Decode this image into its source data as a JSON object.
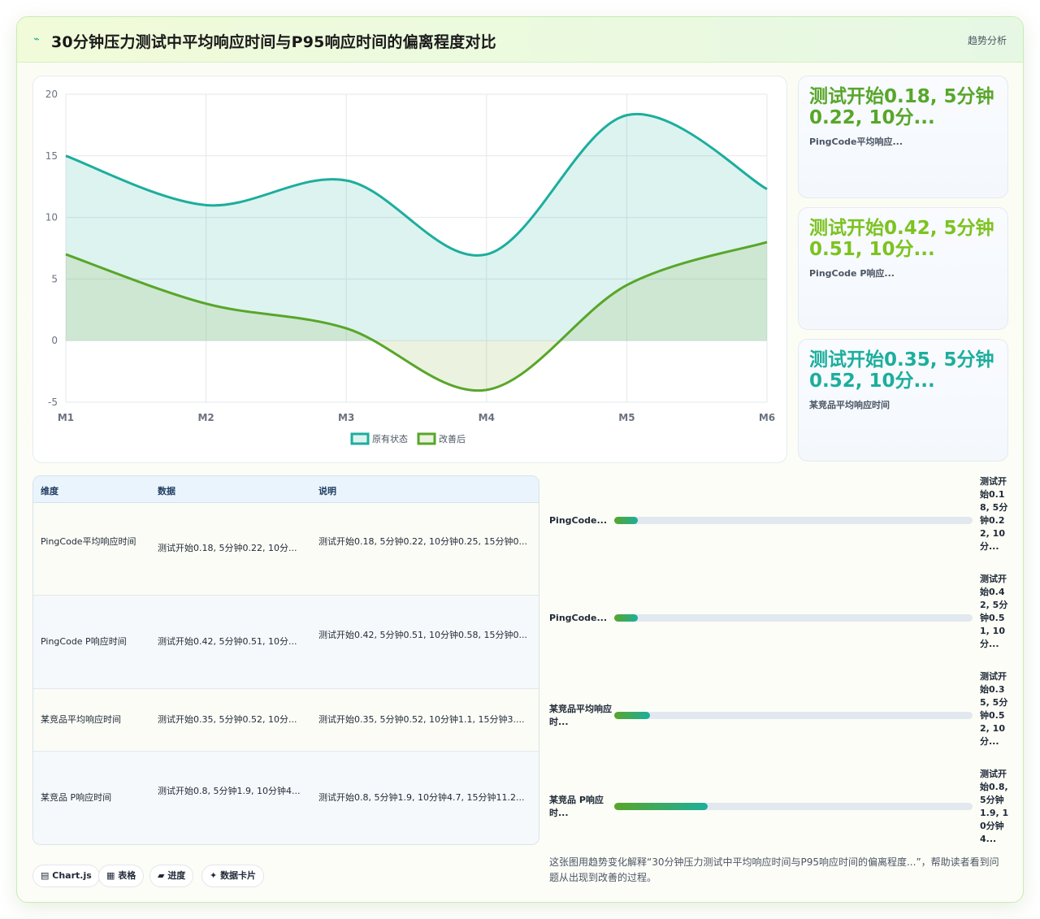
{
  "header": {
    "icon": "trend-line-icon",
    "title": "30分钟压力测试中平均响应时间与P95响应时间的偏离程度对比",
    "badge": "趋势分析"
  },
  "colors": {
    "teal": "#1cae9d",
    "green": "#58a62a",
    "lime": "#7cc320"
  },
  "chart_data": {
    "type": "area",
    "categories": [
      "M1",
      "M2",
      "M3",
      "M4",
      "M5",
      "M6"
    ],
    "ylim": [
      -5,
      20
    ],
    "yticks": [
      20,
      15,
      10,
      5,
      0,
      -5
    ],
    "grid": true,
    "legend_position": "bottom",
    "series": [
      {
        "name": "原有状态",
        "values": [
          15,
          11,
          13,
          7,
          18.3,
          12.3
        ],
        "color": "#1cae9d"
      },
      {
        "name": "改善后",
        "values": [
          7,
          3,
          1,
          -4,
          4.5,
          8
        ],
        "color": "#58a62a"
      }
    ]
  },
  "kpis": [
    {
      "value": "测试开始0.18, 5分钟0.22, 10分...",
      "label": "PingCode平均响应...",
      "color": "#58a62a"
    },
    {
      "value": "测试开始0.42, 5分钟0.51, 10分...",
      "label": "PingCode P响应...",
      "color": "#7cc320"
    },
    {
      "value": "测试开始0.35, 5分钟0.52, 10分...",
      "label": "某竞品平均响应时间",
      "color": "#1cae9d"
    }
  ],
  "table": {
    "headers": [
      "维度",
      "数据",
      "说明"
    ],
    "rows": [
      [
        "PingCode平均响应时间",
        "测试开始0.18, 5分钟0.22, 10分...",
        "测试开始0.18, 5分钟0.22, 10分钟0.25, 15分钟0..."
      ],
      [
        "PingCode P响应时间",
        "测试开始0.42, 5分钟0.51, 10分...",
        "测试开始0.42, 5分钟0.51, 10分钟0.58, 15分钟0..."
      ],
      [
        "某竞品平均响应时间",
        "测试开始0.35, 5分钟0.52, 10分...",
        "测试开始0.35, 5分钟0.52, 10分钟1.1, 15分钟3...."
      ],
      [
        "某竞品 P响应时间",
        "测试开始0.8, 5分钟1.9, 10分钟4...",
        "测试开始0.8, 5分钟1.9, 10分钟4.7, 15分钟11.2..."
      ]
    ]
  },
  "progress": [
    {
      "name": "PingCode...",
      "value": "测试开始0.18, 5分钟0.22, 10分...",
      "fraction": 0.065
    },
    {
      "name": "PingCode...",
      "value": "测试开始0.42, 5分钟0.51, 10分...",
      "fraction": 0.065
    },
    {
      "name": "某竞品平均响应时...",
      "value": "测试开始0.35, 5分钟0.52, 10分...",
      "fraction": 0.1
    },
    {
      "name": "某竞品 P响应时...",
      "value": "测试开始0.8, 5分钟1.9, 10分钟4...",
      "fraction": 0.26
    }
  ],
  "chips": [
    {
      "icon": "chart-icon",
      "glyph": "▤",
      "label": "Chart.js"
    },
    {
      "icon": "table-icon",
      "glyph": "▦",
      "label": "表格"
    },
    {
      "icon": "folder-icon",
      "glyph": "▰",
      "label": "进度"
    },
    {
      "icon": "sparkle-icon",
      "glyph": "✦",
      "label": "数据卡片"
    }
  ],
  "footnote": "这张图用趋势变化解释“30分钟压力测试中平均响应时间与P95响应时间的偏离程度...”，帮助读者看到问题从出现到改善的过程。"
}
